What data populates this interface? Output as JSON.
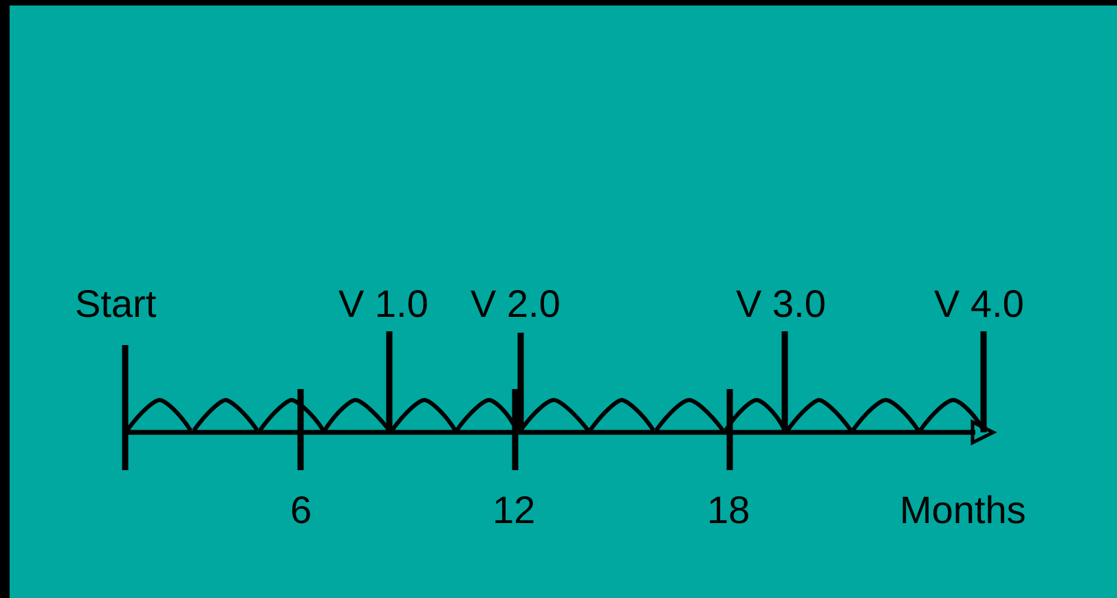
{
  "colors": {
    "background": "#00A8A0",
    "frame": "#000000",
    "ink": "#000000"
  },
  "timeline": {
    "start_label": "Start",
    "unit_label": "Months",
    "month_ticks": [
      "6",
      "12",
      "18"
    ],
    "versions": [
      {
        "label": "V 1.0",
        "month": 9
      },
      {
        "label": "V 2.0",
        "month": 12
      },
      {
        "label": "V 3.0",
        "month": 19
      },
      {
        "label": "V 4.0",
        "month": 24
      }
    ],
    "iterations": 13
  }
}
